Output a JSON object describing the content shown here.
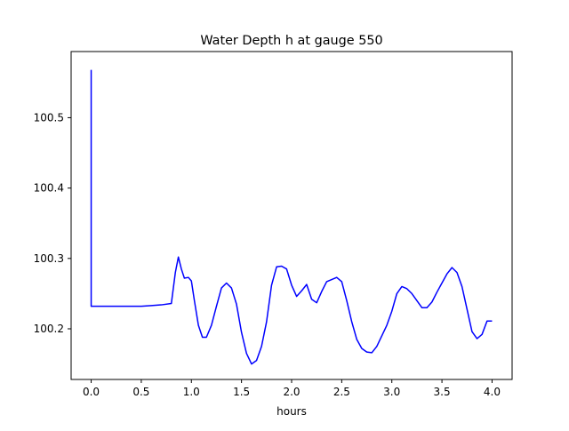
{
  "chart_data": {
    "type": "line",
    "title": "Water Depth h at gauge 550",
    "xlabel": "hours",
    "ylabel": "",
    "xlim": [
      -0.2,
      4.2
    ],
    "ylim": [
      100.128,
      100.594
    ],
    "xticks": [
      0.0,
      0.5,
      1.0,
      1.5,
      2.0,
      2.5,
      3.0,
      3.5,
      4.0
    ],
    "xtick_labels": [
      "0.0",
      "0.5",
      "1.0",
      "1.5",
      "2.0",
      "2.5",
      "3.0",
      "3.5",
      "4.0"
    ],
    "yticks": [
      100.2,
      100.3,
      100.4,
      100.5
    ],
    "ytick_labels": [
      "100.2",
      "100.3",
      "100.4",
      "100.5"
    ],
    "grid": false,
    "series": [
      {
        "color": "#0000ff",
        "x": [
          0.0,
          0.0,
          0.25,
          0.5,
          0.6,
          0.7,
          0.8,
          0.84,
          0.87,
          0.9,
          0.93,
          0.97,
          1.0,
          1.03,
          1.07,
          1.11,
          1.15,
          1.2,
          1.25,
          1.3,
          1.35,
          1.4,
          1.45,
          1.5,
          1.55,
          1.6,
          1.65,
          1.7,
          1.75,
          1.8,
          1.85,
          1.9,
          1.95,
          2.0,
          2.05,
          2.1,
          2.15,
          2.2,
          2.25,
          2.3,
          2.35,
          2.4,
          2.45,
          2.5,
          2.55,
          2.6,
          2.65,
          2.7,
          2.75,
          2.8,
          2.85,
          2.9,
          2.95,
          3.0,
          3.05,
          3.1,
          3.15,
          3.2,
          3.25,
          3.3,
          3.35,
          3.4,
          3.45,
          3.5,
          3.55,
          3.6,
          3.65,
          3.7,
          3.75,
          3.8,
          3.85,
          3.9,
          3.95,
          4.0
        ],
        "y": [
          100.568,
          100.232,
          100.232,
          100.232,
          100.233,
          100.234,
          100.236,
          100.28,
          100.302,
          100.285,
          100.272,
          100.273,
          100.268,
          100.24,
          100.205,
          100.188,
          100.188,
          100.205,
          100.232,
          100.258,
          100.265,
          100.258,
          100.235,
          100.195,
          100.165,
          100.15,
          100.155,
          100.175,
          100.21,
          100.262,
          100.288,
          100.289,
          100.285,
          100.262,
          100.246,
          100.254,
          100.263,
          100.242,
          100.237,
          100.253,
          100.267,
          100.27,
          100.273,
          100.267,
          100.24,
          100.21,
          100.185,
          100.172,
          100.167,
          100.166,
          100.175,
          100.19,
          100.205,
          100.225,
          100.25,
          100.26,
          100.257,
          100.25,
          100.24,
          100.23,
          100.23,
          100.238,
          100.252,
          100.265,
          100.278,
          100.287,
          100.28,
          100.26,
          100.228,
          100.196,
          100.186,
          100.192,
          100.211,
          100.211
        ]
      }
    ]
  },
  "colors": {
    "line": "#0000ff",
    "axes": "#000000",
    "background": "#ffffff"
  }
}
